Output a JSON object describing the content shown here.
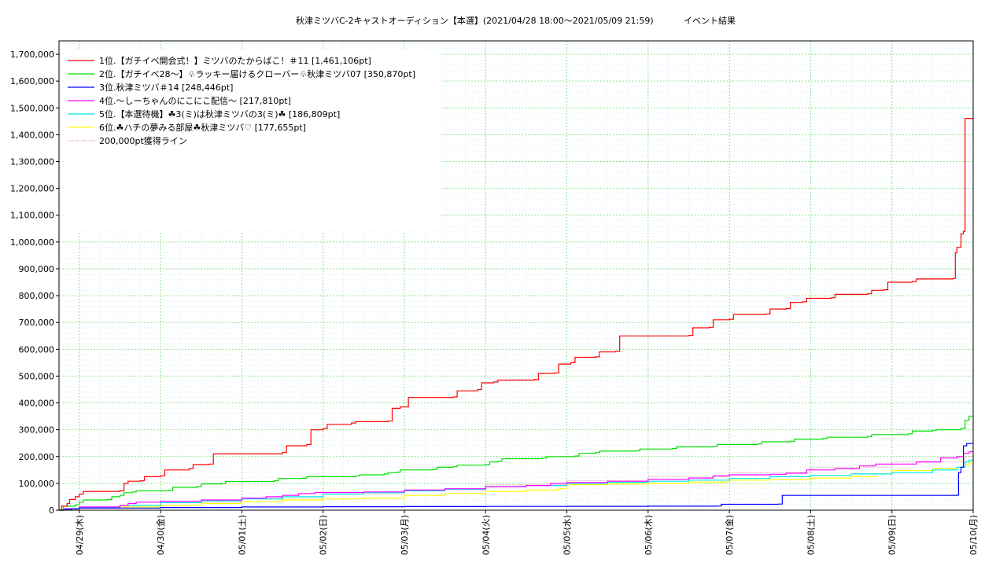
{
  "chart_data": {
    "type": "line",
    "title": "秋津ミツバC-2キャストオーディション【本選】(2021/04/28 18:00〜2021/05/09 21:59)",
    "subtitle": "イベント結果",
    "xlabel": "",
    "ylabel": "",
    "ylim": [
      0,
      1750000
    ],
    "xlim": [
      "04/28 18:00",
      "05/10 00:10"
    ],
    "grid": true,
    "legend_position": "top-left",
    "x_ticks": [
      "04/29(木)",
      "04/30(金)",
      "05/01(土)",
      "05/02(日)",
      "05/03(月)",
      "05/04(火)",
      "05/05(水)",
      "05/06(木)",
      "05/07(金)",
      "05/08(土)",
      "05/09(日)",
      "05/10(月)"
    ],
    "y_ticks": [
      "0",
      "100,000",
      "200,000",
      "300,000",
      "400,000",
      "500,000",
      "600,000",
      "700,000",
      "800,000",
      "900,000",
      "1,000,000",
      "1,100,000",
      "1,200,000",
      "1,300,000",
      "1,400,000",
      "1,500,000",
      "1,600,000",
      "1,700,000"
    ],
    "y_tick_values": [
      0,
      100000,
      200000,
      300000,
      400000,
      500000,
      600000,
      700000,
      800000,
      900000,
      1000000,
      1100000,
      1200000,
      1300000,
      1400000,
      1500000,
      1600000,
      1700000
    ],
    "x_unit": "days since 04/28 00:00",
    "series": [
      {
        "name": "1位.【ガチイベ開会式！】ミツバのたからばこ！＃11 [1,461,106pt]",
        "color": "#ff0000",
        "style": "solid",
        "points": [
          [
            0.75,
            0
          ],
          [
            0.78,
            15000
          ],
          [
            0.85,
            25000
          ],
          [
            0.88,
            40000
          ],
          [
            0.95,
            50000
          ],
          [
            1.0,
            60000
          ],
          [
            1.05,
            70000
          ],
          [
            1.5,
            72000
          ],
          [
            1.55,
            100000
          ],
          [
            1.6,
            108000
          ],
          [
            1.75,
            110000
          ],
          [
            1.8,
            125000
          ],
          [
            2.0,
            128000
          ],
          [
            2.05,
            150000
          ],
          [
            2.35,
            155000
          ],
          [
            2.4,
            170000
          ],
          [
            2.6,
            172000
          ],
          [
            2.65,
            210000
          ],
          [
            3.5,
            215000
          ],
          [
            3.55,
            240000
          ],
          [
            3.8,
            245000
          ],
          [
            3.85,
            300000
          ],
          [
            4.0,
            305000
          ],
          [
            4.05,
            320000
          ],
          [
            4.35,
            325000
          ],
          [
            4.4,
            330000
          ],
          [
            4.8,
            332000
          ],
          [
            4.85,
            380000
          ],
          [
            4.95,
            385000
          ],
          [
            5.05,
            420000
          ],
          [
            5.6,
            422000
          ],
          [
            5.65,
            445000
          ],
          [
            5.9,
            450000
          ],
          [
            5.95,
            475000
          ],
          [
            6.1,
            478000
          ],
          [
            6.15,
            485000
          ],
          [
            6.6,
            487000
          ],
          [
            6.65,
            510000
          ],
          [
            6.85,
            512000
          ],
          [
            6.9,
            545000
          ],
          [
            7.05,
            550000
          ],
          [
            7.1,
            570000
          ],
          [
            7.35,
            572000
          ],
          [
            7.4,
            590000
          ],
          [
            7.6,
            592000
          ],
          [
            7.65,
            650000
          ],
          [
            8.5,
            652000
          ],
          [
            8.55,
            680000
          ],
          [
            8.75,
            682000
          ],
          [
            8.8,
            710000
          ],
          [
            9.0,
            712000
          ],
          [
            9.05,
            730000
          ],
          [
            9.45,
            732000
          ],
          [
            9.5,
            750000
          ],
          [
            9.7,
            752000
          ],
          [
            9.75,
            775000
          ],
          [
            9.9,
            777000
          ],
          [
            9.95,
            790000
          ],
          [
            10.25,
            792000
          ],
          [
            10.3,
            805000
          ],
          [
            10.7,
            807000
          ],
          [
            10.75,
            820000
          ],
          [
            10.9,
            822000
          ],
          [
            10.95,
            850000
          ],
          [
            11.25,
            852000
          ],
          [
            11.3,
            862000
          ],
          [
            11.75,
            864000
          ],
          [
            11.78,
            960000
          ],
          [
            11.8,
            980000
          ],
          [
            11.85,
            1030000
          ],
          [
            11.88,
            1040000
          ],
          [
            11.9,
            1461106
          ],
          [
            12.0,
            1461106
          ]
        ]
      },
      {
        "name": "2位.【ガチイベ28〜】♧ラッキー届けるクローバー♧秋津ミツバ07 [350,870pt]",
        "color": "#00e000",
        "style": "solid",
        "points": [
          [
            0.75,
            0
          ],
          [
            0.8,
            15000
          ],
          [
            0.95,
            20000
          ],
          [
            1.0,
            30000
          ],
          [
            1.05,
            38000
          ],
          [
            1.35,
            40000
          ],
          [
            1.4,
            50000
          ],
          [
            1.5,
            55000
          ],
          [
            1.55,
            65000
          ],
          [
            1.65,
            68000
          ],
          [
            1.7,
            72000
          ],
          [
            2.1,
            74000
          ],
          [
            2.15,
            85000
          ],
          [
            2.45,
            88000
          ],
          [
            2.5,
            98000
          ],
          [
            2.75,
            100000
          ],
          [
            2.8,
            107000
          ],
          [
            3.4,
            110000
          ],
          [
            3.45,
            118000
          ],
          [
            3.75,
            120000
          ],
          [
            3.8,
            125000
          ],
          [
            4.4,
            128000
          ],
          [
            4.45,
            132000
          ],
          [
            4.75,
            135000
          ],
          [
            4.8,
            140000
          ],
          [
            4.9,
            142000
          ],
          [
            4.95,
            150000
          ],
          [
            5.35,
            152000
          ],
          [
            5.4,
            160000
          ],
          [
            5.6,
            162000
          ],
          [
            5.65,
            168000
          ],
          [
            6.0,
            170000
          ],
          [
            6.05,
            180000
          ],
          [
            6.15,
            182000
          ],
          [
            6.2,
            192000
          ],
          [
            6.7,
            194000
          ],
          [
            6.75,
            200000
          ],
          [
            7.1,
            202000
          ],
          [
            7.15,
            212000
          ],
          [
            7.35,
            215000
          ],
          [
            7.4,
            220000
          ],
          [
            7.85,
            222000
          ],
          [
            7.9,
            228000
          ],
          [
            8.3,
            230000
          ],
          [
            8.35,
            236000
          ],
          [
            8.8,
            238000
          ],
          [
            8.85,
            245000
          ],
          [
            9.35,
            247000
          ],
          [
            9.4,
            255000
          ],
          [
            9.75,
            257000
          ],
          [
            9.8,
            265000
          ],
          [
            10.15,
            267000
          ],
          [
            10.2,
            272000
          ],
          [
            10.7,
            275000
          ],
          [
            10.75,
            282000
          ],
          [
            11.2,
            285000
          ],
          [
            11.25,
            295000
          ],
          [
            11.5,
            298000
          ],
          [
            11.55,
            300000
          ],
          [
            11.85,
            305000
          ],
          [
            11.9,
            335000
          ],
          [
            11.95,
            350870
          ],
          [
            12.0,
            350870
          ]
        ]
      },
      {
        "name": "3位.秋津ミツバ＃14 [248,446pt]",
        "color": "#0000ff",
        "style": "solid",
        "points": [
          [
            0.75,
            0
          ],
          [
            0.8,
            2000
          ],
          [
            0.9,
            5000
          ],
          [
            1.0,
            8000
          ],
          [
            2.0,
            10000
          ],
          [
            3.0,
            12000
          ],
          [
            4.0,
            13000
          ],
          [
            5.0,
            13500
          ],
          [
            6.0,
            14000
          ],
          [
            7.0,
            14500
          ],
          [
            8.0,
            15000
          ],
          [
            8.85,
            15500
          ],
          [
            8.9,
            22000
          ],
          [
            9.6,
            23000
          ],
          [
            9.65,
            55000
          ],
          [
            11.8,
            56000
          ],
          [
            11.82,
            140000
          ],
          [
            11.85,
            160000
          ],
          [
            11.88,
            240000
          ],
          [
            11.92,
            248446
          ],
          [
            12.0,
            248446
          ]
        ]
      },
      {
        "name": "4位.〜しーちゃんのにこにこ配信〜 [217,810pt]",
        "color": "#ff00ff",
        "style": "solid",
        "points": [
          [
            0.75,
            0
          ],
          [
            0.8,
            5000
          ],
          [
            1.0,
            12000
          ],
          [
            1.5,
            18000
          ],
          [
            1.6,
            25000
          ],
          [
            1.7,
            30000
          ],
          [
            2.0,
            33000
          ],
          [
            2.5,
            38000
          ],
          [
            3.0,
            45000
          ],
          [
            3.3,
            50000
          ],
          [
            3.5,
            55000
          ],
          [
            3.7,
            62000
          ],
          [
            3.9,
            66000
          ],
          [
            4.5,
            68000
          ],
          [
            5.0,
            75000
          ],
          [
            5.5,
            80000
          ],
          [
            6.0,
            88000
          ],
          [
            6.5,
            92000
          ],
          [
            6.8,
            100000
          ],
          [
            7.0,
            103000
          ],
          [
            7.5,
            108000
          ],
          [
            8.0,
            115000
          ],
          [
            8.5,
            120000
          ],
          [
            8.8,
            128000
          ],
          [
            9.0,
            132000
          ],
          [
            9.5,
            134000
          ],
          [
            9.7,
            138000
          ],
          [
            9.95,
            150000
          ],
          [
            10.3,
            155000
          ],
          [
            10.6,
            165000
          ],
          [
            10.8,
            172000
          ],
          [
            11.3,
            180000
          ],
          [
            11.6,
            195000
          ],
          [
            11.8,
            200000
          ],
          [
            11.88,
            212000
          ],
          [
            11.95,
            217810
          ],
          [
            12.0,
            217810
          ]
        ]
      },
      {
        "name": "5位.【本選待機】☘3(ミ)は秋津ミツバの3(ミ)☘ [186,809pt]",
        "color": "#00e8e8",
        "style": "solid",
        "points": [
          [
            0.75,
            0
          ],
          [
            0.8,
            6000
          ],
          [
            1.0,
            10000
          ],
          [
            1.5,
            18000
          ],
          [
            2.0,
            28000
          ],
          [
            2.5,
            35000
          ],
          [
            3.0,
            42000
          ],
          [
            3.5,
            50000
          ],
          [
            4.0,
            60000
          ],
          [
            4.5,
            65000
          ],
          [
            5.0,
            72000
          ],
          [
            5.5,
            78000
          ],
          [
            6.0,
            88000
          ],
          [
            6.5,
            92000
          ],
          [
            7.0,
            100000
          ],
          [
            7.5,
            104000
          ],
          [
            8.0,
            108000
          ],
          [
            8.5,
            112000
          ],
          [
            9.0,
            118000
          ],
          [
            9.5,
            125000
          ],
          [
            10.0,
            130000
          ],
          [
            10.5,
            135000
          ],
          [
            11.0,
            140000
          ],
          [
            11.5,
            150000
          ],
          [
            11.8,
            160000
          ],
          [
            11.9,
            180000
          ],
          [
            11.95,
            186809
          ],
          [
            12.0,
            186809
          ]
        ]
      },
      {
        "name": "6位.☘ハチの夢みる部屋☘秋津ミツバ♡ [177,655pt]",
        "color": "#ffff00",
        "style": "solid",
        "points": [
          [
            0.75,
            0
          ],
          [
            0.8,
            4000
          ],
          [
            1.0,
            8000
          ],
          [
            1.5,
            12000
          ],
          [
            2.0,
            18000
          ],
          [
            2.5,
            25000
          ],
          [
            3.0,
            32000
          ],
          [
            3.5,
            38000
          ],
          [
            4.0,
            42000
          ],
          [
            4.5,
            45000
          ],
          [
            5.0,
            55000
          ],
          [
            5.5,
            62000
          ],
          [
            6.0,
            70000
          ],
          [
            6.5,
            75000
          ],
          [
            6.9,
            80000
          ],
          [
            7.0,
            95000
          ],
          [
            7.5,
            98000
          ],
          [
            8.0,
            100000
          ],
          [
            8.5,
            105000
          ],
          [
            9.0,
            112000
          ],
          [
            9.5,
            115000
          ],
          [
            10.0,
            120000
          ],
          [
            10.5,
            125000
          ],
          [
            10.8,
            135000
          ],
          [
            11.0,
            148000
          ],
          [
            11.5,
            155000
          ],
          [
            11.8,
            160000
          ],
          [
            11.9,
            170000
          ],
          [
            11.95,
            177655
          ],
          [
            12.0,
            177655
          ]
        ]
      },
      {
        "name": "200,000pt獲得ライン",
        "color": "#d08080",
        "style": "dotted",
        "points": [
          [
            0.75,
            0
          ],
          [
            1.0,
            10000
          ],
          [
            2.0,
            30000
          ],
          [
            3.0,
            45000
          ],
          [
            4.0,
            60000
          ],
          [
            5.0,
            75000
          ],
          [
            6.0,
            95000
          ],
          [
            7.0,
            110000
          ],
          [
            8.0,
            125000
          ],
          [
            9.0,
            140000
          ],
          [
            10.0,
            160000
          ],
          [
            11.0,
            180000
          ],
          [
            11.9,
            200000
          ],
          [
            12.0,
            200000
          ]
        ]
      }
    ]
  }
}
